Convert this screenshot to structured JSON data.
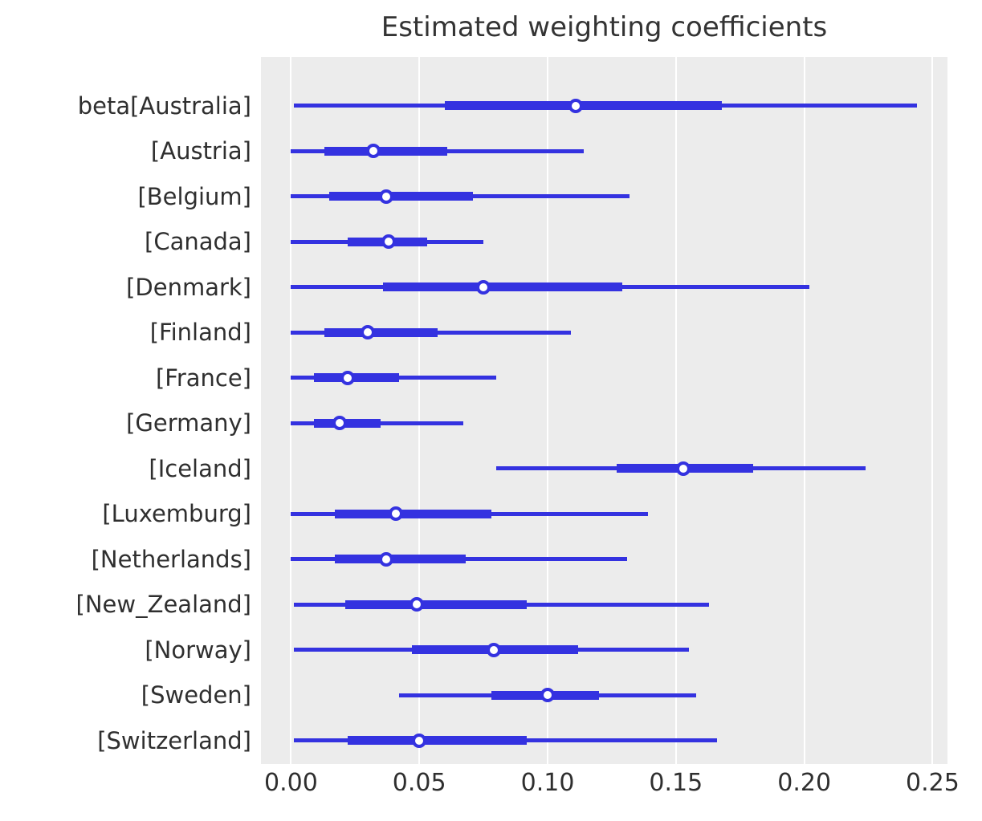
{
  "title": "Estimated weighting coefficients",
  "colors": {
    "line": "#3432e0",
    "marker_face": "#ffffff",
    "plot_background": "#ececec",
    "gridline": "#ffffff",
    "text": "#2f2f2f",
    "figure_background": "#ffffff"
  },
  "chart_data": {
    "type": "forest",
    "title": "Estimated weighting coefficients",
    "xlabel": "",
    "ylabel": "",
    "legend": "none",
    "grid": "vertical white gridlines on gray panel",
    "xlim": [
      -0.0117,
      0.2558
    ],
    "x_ticks": [
      0.0,
      0.05,
      0.1,
      0.15,
      0.2,
      0.25
    ],
    "x_tick_labels": [
      "0.00",
      "0.05",
      "0.10",
      "0.15",
      "0.20",
      "0.25"
    ],
    "marker_style": "open circle (white fill, blue edge) at median",
    "rows": [
      {
        "label": "beta[Australia]",
        "interval_lo": 0.001,
        "q1": 0.06,
        "median": 0.111,
        "q3": 0.168,
        "interval_hi": 0.244
      },
      {
        "label": "[Austria]",
        "interval_lo": 0.0,
        "q1": 0.013,
        "median": 0.032,
        "q3": 0.061,
        "interval_hi": 0.114
      },
      {
        "label": "[Belgium]",
        "interval_lo": 0.0,
        "q1": 0.015,
        "median": 0.037,
        "q3": 0.071,
        "interval_hi": 0.132
      },
      {
        "label": "[Canada]",
        "interval_lo": 0.0,
        "q1": 0.022,
        "median": 0.038,
        "q3": 0.053,
        "interval_hi": 0.075
      },
      {
        "label": "[Denmark]",
        "interval_lo": 0.0,
        "q1": 0.036,
        "median": 0.075,
        "q3": 0.129,
        "interval_hi": 0.202
      },
      {
        "label": "[Finland]",
        "interval_lo": 0.0,
        "q1": 0.013,
        "median": 0.03,
        "q3": 0.057,
        "interval_hi": 0.109
      },
      {
        "label": "[France]",
        "interval_lo": 0.0,
        "q1": 0.009,
        "median": 0.022,
        "q3": 0.042,
        "interval_hi": 0.08
      },
      {
        "label": "[Germany]",
        "interval_lo": 0.0,
        "q1": 0.009,
        "median": 0.019,
        "q3": 0.035,
        "interval_hi": 0.067
      },
      {
        "label": "[Iceland]",
        "interval_lo": 0.08,
        "q1": 0.127,
        "median": 0.153,
        "q3": 0.18,
        "interval_hi": 0.224
      },
      {
        "label": "[Luxemburg]",
        "interval_lo": 0.0,
        "q1": 0.017,
        "median": 0.041,
        "q3": 0.078,
        "interval_hi": 0.139
      },
      {
        "label": "[Netherlands]",
        "interval_lo": 0.0,
        "q1": 0.017,
        "median": 0.037,
        "q3": 0.068,
        "interval_hi": 0.131
      },
      {
        "label": "[New_Zealand]",
        "interval_lo": 0.001,
        "q1": 0.021,
        "median": 0.049,
        "q3": 0.092,
        "interval_hi": 0.163
      },
      {
        "label": "[Norway]",
        "interval_lo": 0.001,
        "q1": 0.047,
        "median": 0.079,
        "q3": 0.112,
        "interval_hi": 0.155
      },
      {
        "label": "[Sweden]",
        "interval_lo": 0.042,
        "q1": 0.078,
        "median": 0.1,
        "q3": 0.12,
        "interval_hi": 0.158
      },
      {
        "label": "[Switzerland]",
        "interval_lo": 0.001,
        "q1": 0.022,
        "median": 0.05,
        "q3": 0.092,
        "interval_hi": 0.166
      }
    ]
  }
}
